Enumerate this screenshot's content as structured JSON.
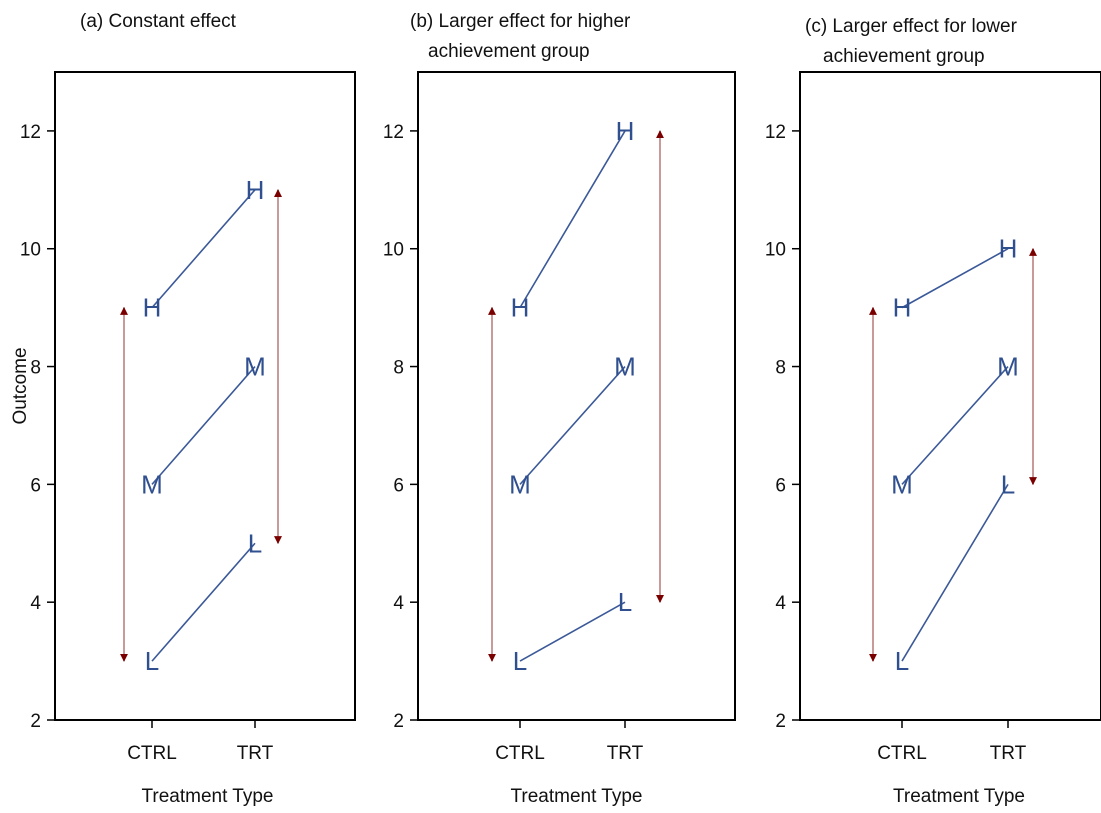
{
  "chart_data": [
    {
      "type": "line",
      "title": "(a) Constant effect",
      "title_lines": [
        "(a) Constant effect"
      ],
      "xlabel": "Treatment Type",
      "ylabel": "Outcome",
      "categories": [
        "CTRL",
        "TRT"
      ],
      "yticks": [
        2,
        4,
        6,
        8,
        10,
        12
      ],
      "ylim": [
        2,
        13
      ],
      "series": [
        {
          "name": "H",
          "values": [
            9,
            11
          ]
        },
        {
          "name": "M",
          "values": [
            6,
            8
          ]
        },
        {
          "name": "L",
          "values": [
            3,
            5
          ]
        }
      ],
      "range_arrows": [
        {
          "near": "CTRL",
          "from": 3,
          "to": 9
        },
        {
          "near": "TRT",
          "from": 5,
          "to": 11
        }
      ]
    },
    {
      "type": "line",
      "title": "(b) Larger effect for higher achievement group",
      "title_lines": [
        "(b) Larger effect for higher",
        "achievement group"
      ],
      "xlabel": "Treatment Type",
      "ylabel": "",
      "categories": [
        "CTRL",
        "TRT"
      ],
      "yticks": [
        2,
        4,
        6,
        8,
        10,
        12
      ],
      "ylim": [
        2,
        13
      ],
      "series": [
        {
          "name": "H",
          "values": [
            9,
            12
          ]
        },
        {
          "name": "M",
          "values": [
            6,
            8
          ]
        },
        {
          "name": "L",
          "values": [
            3,
            4
          ]
        }
      ],
      "range_arrows": [
        {
          "near": "CTRL",
          "from": 3,
          "to": 9
        },
        {
          "near": "TRT",
          "from": 4,
          "to": 12
        }
      ]
    },
    {
      "type": "line",
      "title": "(c) Larger effect for lower achievement group",
      "title_lines": [
        "(c) Larger effect for lower",
        "achievement group"
      ],
      "xlabel": "Treatment Type",
      "ylabel": "",
      "categories": [
        "CTRL",
        "TRT"
      ],
      "yticks": [
        2,
        4,
        6,
        8,
        10,
        12
      ],
      "ylim": [
        2,
        13
      ],
      "series": [
        {
          "name": "H",
          "values": [
            9,
            10
          ]
        },
        {
          "name": "M",
          "values": [
            6,
            8
          ]
        },
        {
          "name": "L",
          "values": [
            3,
            6
          ]
        }
      ],
      "range_arrows": [
        {
          "near": "CTRL",
          "from": 3,
          "to": 9
        },
        {
          "near": "TRT",
          "from": 6,
          "to": 10
        }
      ]
    }
  ],
  "colors": {
    "series_line": "#3b5998",
    "series_label": "#2f4f8f",
    "arrow": "#7a0000",
    "arrow_shaft": "#c99a9a",
    "frame": "#000000"
  }
}
